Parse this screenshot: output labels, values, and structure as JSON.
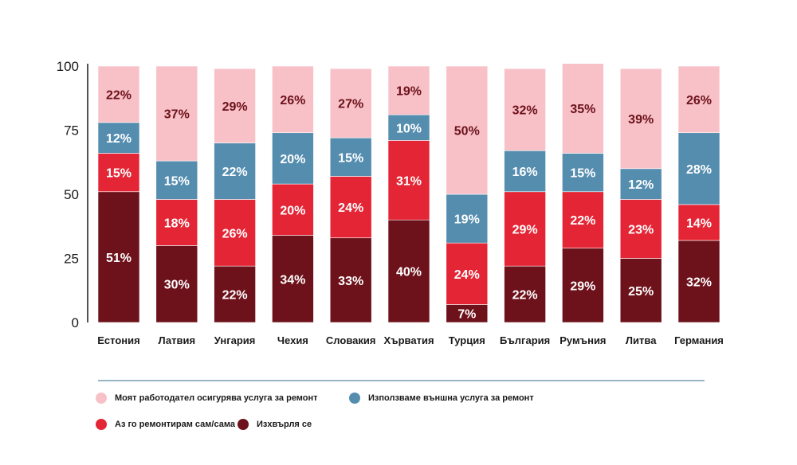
{
  "chart_data": {
    "type": "bar",
    "stacked": true,
    "y_ticks": [
      0,
      25,
      50,
      75,
      100
    ],
    "ylim": [
      0,
      100
    ],
    "grid": false,
    "legend_position": "bottom",
    "categories": [
      "Естония",
      "Латвия",
      "Унгария",
      "Чехия",
      "Словакия",
      "Хърватия",
      "Турция",
      "България",
      "Румъния",
      "Литва",
      "Германия"
    ],
    "series": [
      {
        "name": "Изхвърля се",
        "color": "#6d111a",
        "values": [
          51,
          30,
          22,
          34,
          33,
          40,
          7,
          22,
          29,
          25,
          32
        ]
      },
      {
        "name": "Аз го ремонтирам сам/сама",
        "color": "#e42535",
        "values": [
          15,
          18,
          26,
          20,
          24,
          31,
          24,
          29,
          22,
          23,
          14
        ]
      },
      {
        "name": "Използваме външна услуга за ремонт",
        "color": "#558daf",
        "values": [
          12,
          15,
          22,
          20,
          15,
          10,
          19,
          16,
          15,
          12,
          28
        ]
      },
      {
        "name": "Моят работодател осигурява услуга за ремонт",
        "color": "#f7c1c7",
        "values": [
          22,
          37,
          29,
          26,
          27,
          19,
          50,
          32,
          35,
          39,
          26
        ]
      }
    ],
    "data_labels": [
      [
        "51%",
        "30%",
        "22%",
        "34%",
        "33%",
        "40%",
        "7%",
        "22%",
        "29%",
        "25%",
        "32%"
      ],
      [
        "15%",
        "18%",
        "26%",
        "20%",
        "24%",
        "31%",
        "24%",
        "29%",
        "22%",
        "23%",
        "14%"
      ],
      [
        "12%",
        "15%",
        "22%",
        "20%",
        "15%",
        "10%",
        "19%",
        "16%",
        "15%",
        "12%",
        "28%"
      ],
      [
        "22%",
        "37%",
        "29%",
        "26%",
        "27%",
        "19%",
        "50%",
        "32%",
        "35%",
        "39%",
        "26%"
      ]
    ],
    "label_colors": [
      "#ffffff",
      "#ffffff",
      "#ffffff",
      "#6d111a"
    ]
  },
  "legend": {
    "employer": {
      "label": "Моят работодател осигурява услуга за ремонт",
      "color": "#f7c1c7"
    },
    "external": {
      "label": "Използваме външна услуга за ремонт",
      "color": "#558daf"
    },
    "self": {
      "label": "Аз го ремонтирам сам/сама",
      "color": "#e42535"
    },
    "discarded": {
      "label": "Изхвърля се",
      "color": "#6d111a"
    }
  },
  "divider_color": "#2f6b85"
}
